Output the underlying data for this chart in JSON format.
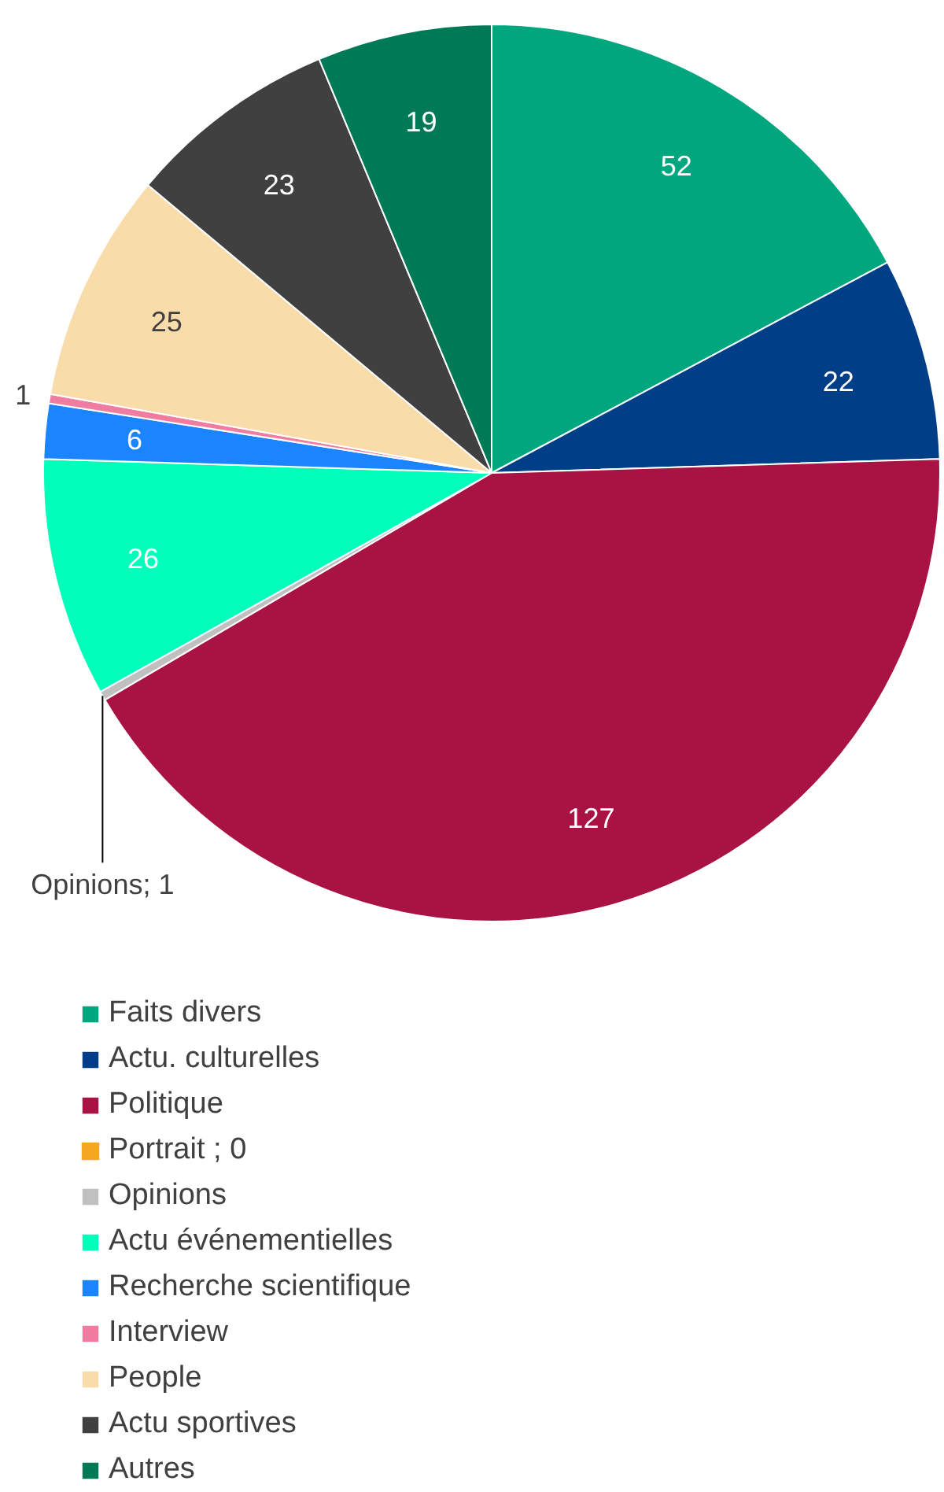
{
  "chart_data": {
    "type": "pie",
    "categories": [
      "Faits divers",
      "Actu. culturelles",
      "Politique",
      "Portrait ; 0",
      "Opinions",
      "Actu événementielles",
      "Recherche scientifique",
      "Interview",
      "People",
      "Actu sportives",
      "Autres"
    ],
    "values": [
      52,
      22,
      127,
      0,
      1,
      26,
      6,
      1,
      25,
      23,
      19
    ],
    "colors": [
      "#00a67e",
      "#003f87",
      "#a91343",
      "#f5a623",
      "#c0c0c0",
      "#00ffbb",
      "#1a85ff",
      "#f07ca0",
      "#f8dcaa",
      "#404040",
      "#007a56"
    ],
    "value_labels": [
      "52",
      "22",
      "127",
      null,
      "Opinions; 1",
      "26",
      "6",
      "1",
      "25",
      "23",
      "19"
    ],
    "legend": "bottom"
  }
}
